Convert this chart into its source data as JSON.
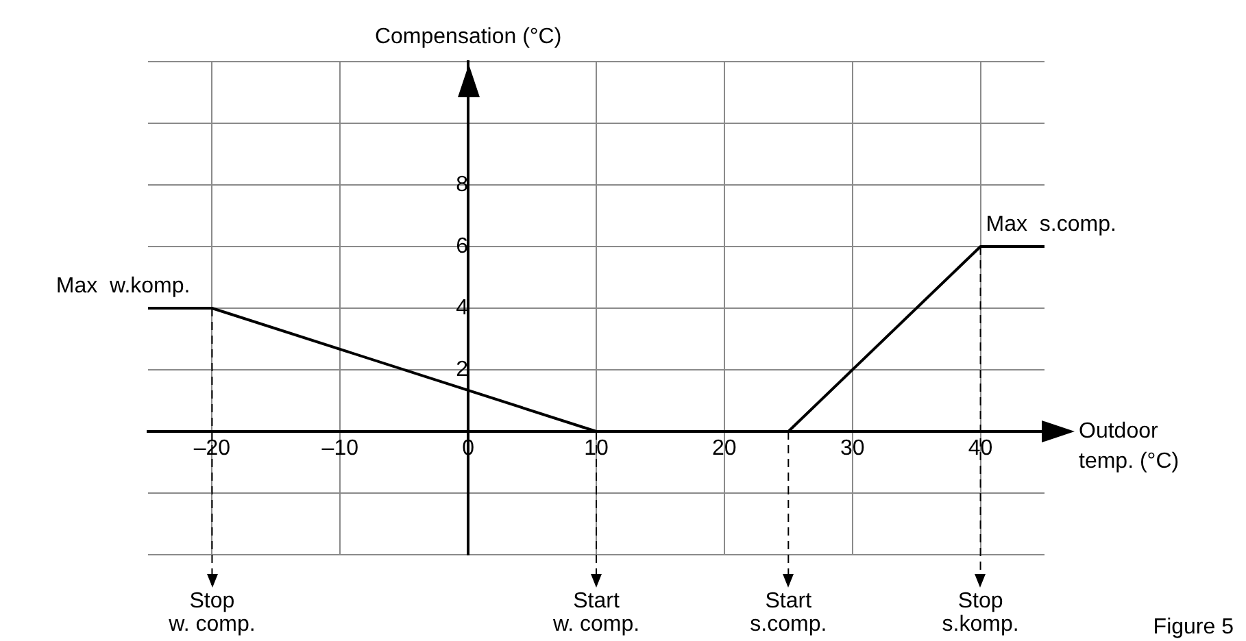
{
  "chart_data": {
    "type": "line",
    "xlabel": "Outdoor\ntemp. (°C)",
    "ylabel": "Compensation (°C)",
    "x": [
      -25,
      -20,
      10,
      25,
      40,
      45
    ],
    "series": [
      {
        "color": "#000000",
        "values": [
          4,
          4,
          0,
          0,
          6,
          6
        ]
      }
    ],
    "xlim": [
      -25,
      45
    ],
    "xticks": [
      {
        "value": -20,
        "label": "–20"
      },
      {
        "value": -10,
        "label": "–10"
      },
      0,
      10,
      20,
      30,
      40
    ],
    "ylim": [
      -4,
      12
    ],
    "yticks": [
      {
        "value": -4,
        "label": null
      },
      {
        "value": -2,
        "label": null
      },
      {
        "value": 0,
        "label": null
      },
      2,
      4,
      6,
      8,
      {
        "value": 10,
        "label": null
      },
      {
        "value": 12,
        "label": null
      }
    ],
    "grid": true,
    "legend": false,
    "marker": "none",
    "line_style": "solid",
    "ref_lines": [
      {
        "axis": "x",
        "value": -20,
        "label": "Stop\nw. comp.",
        "line_style": "dashed"
      },
      {
        "axis": "x",
        "value": 10,
        "label": "Start\nw. comp.",
        "line_style": "dashed"
      },
      {
        "axis": "x",
        "value": 25,
        "label": "Start\ns.comp.",
        "line_style": "dashed"
      },
      {
        "axis": "x",
        "value": 40,
        "label": "Stop\ns.komp.",
        "line_style": "dashed"
      }
    ],
    "annotations": [
      {
        "text": "Max  w.komp.",
        "x": -20,
        "y": 4
      },
      {
        "text": "Max  s.comp.",
        "x": 40,
        "y": 6
      },
      "Figure 5"
    ]
  }
}
